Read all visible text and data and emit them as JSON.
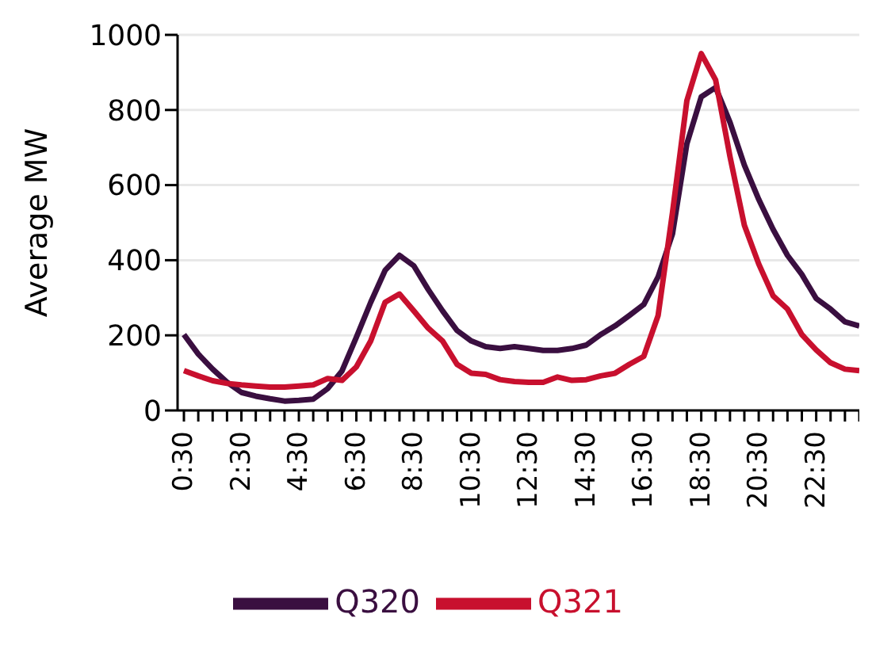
{
  "chart_data": {
    "type": "line",
    "ylabel": "Average MW",
    "categories": [
      "0:30",
      null,
      null,
      null,
      "2:30",
      null,
      null,
      null,
      "4:30",
      null,
      null,
      null,
      "6:30",
      null,
      null,
      null,
      "8:30",
      null,
      null,
      null,
      "10:30",
      null,
      null,
      null,
      "12:30",
      null,
      null,
      null,
      "14:30",
      null,
      null,
      null,
      "16:30",
      null,
      null,
      null,
      "18:30",
      null,
      null,
      null,
      "20:30",
      null,
      null,
      null,
      "22:30",
      null,
      null,
      null
    ],
    "series": [
      {
        "name": "Q320",
        "color": "#3a0f40",
        "values": [
          202,
          150,
          110,
          75,
          48,
          38,
          31,
          25,
          27,
          30,
          58,
          105,
          195,
          288,
          373,
          413,
          385,
          322,
          265,
          213,
          185,
          170,
          165,
          170,
          165,
          160,
          160,
          165,
          174,
          202,
          225,
          253,
          282,
          356,
          470,
          710,
          835,
          860,
          767,
          653,
          562,
          482,
          413,
          362,
          298,
          270,
          236,
          225
        ]
      },
      {
        "name": "Q321",
        "color": "#c8102e",
        "values": [
          106,
          92,
          79,
          72,
          68,
          65,
          62,
          62,
          65,
          68,
          85,
          80,
          116,
          185,
          288,
          310,
          265,
          219,
          185,
          123,
          99,
          96,
          82,
          77,
          75,
          75,
          89,
          80,
          82,
          92,
          99,
          123,
          144,
          253,
          527,
          825,
          950,
          880,
          676,
          493,
          390,
          305,
          270,
          202,
          161,
          127,
          110,
          106
        ]
      }
    ],
    "ylim": [
      0,
      1000
    ],
    "yticks": [
      0,
      200,
      400,
      600,
      800,
      1000
    ],
    "grid": "y",
    "legend": "bottom",
    "marker": "none",
    "line_style": "solid"
  }
}
